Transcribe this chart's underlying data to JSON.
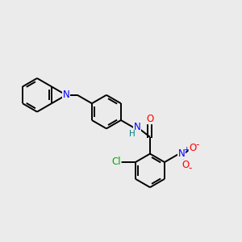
{
  "bg_color": "#ebebeb",
  "bond_color": "#000000",
  "bond_width": 1.4,
  "atom_colors": {
    "S": "#cccc00",
    "N": "#0000ff",
    "O": "#ff0000",
    "Cl": "#00aa00",
    "H": "#008080",
    "C": "#000000"
  },
  "font_size": 8.5,
  "fig_size": [
    3.0,
    3.0
  ],
  "dpi": 100
}
